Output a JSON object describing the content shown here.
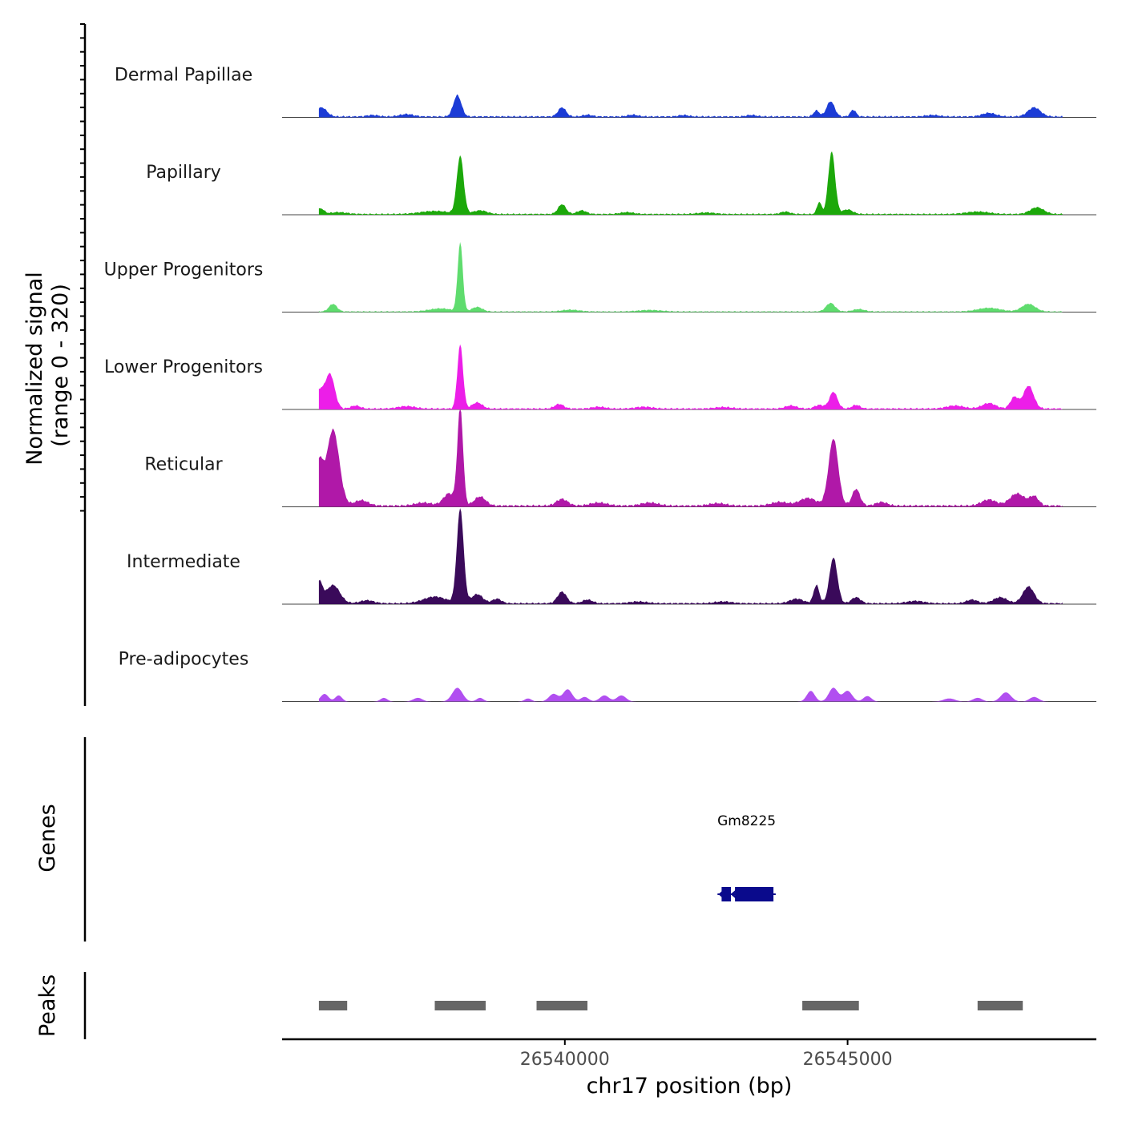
{
  "chart_data": {
    "type": "area",
    "title": "",
    "chromosome": "chr17",
    "xlabel": "chr17 position (bp)",
    "ylabel": "Normalized signal",
    "ylabel_range": "(range 0 - 320)",
    "xlim": [
      26535000,
      26549400
    ],
    "ylim": [
      0,
      320
    ],
    "region": [
      26535650,
      26548800
    ],
    "x_ticks": [
      {
        "value": 26540000,
        "label": "26540000"
      },
      {
        "value": 26545000,
        "label": "26545000"
      }
    ],
    "series": [
      {
        "name": "Dermal Papillae",
        "color": "#1c3cd6",
        "background": 6,
        "peaks": [
          [
            26535700,
            30,
            90
          ],
          [
            26536600,
            5,
            100
          ],
          [
            26537200,
            8,
            120
          ],
          [
            26538100,
            70,
            70
          ],
          [
            26539950,
            30,
            70
          ],
          [
            26540400,
            6,
            80
          ],
          [
            26541200,
            6,
            90
          ],
          [
            26542100,
            5,
            90
          ],
          [
            26543300,
            5,
            90
          ],
          [
            26544450,
            20,
            50
          ],
          [
            26544700,
            50,
            70
          ],
          [
            26545100,
            22,
            50
          ],
          [
            26546500,
            5,
            120
          ],
          [
            26547500,
            12,
            120
          ],
          [
            26548300,
            30,
            110
          ]
        ]
      },
      {
        "name": "Papillary",
        "color": "#1ca80a",
        "background": 5,
        "peaks": [
          [
            26535680,
            18,
            60
          ],
          [
            26536000,
            6,
            150
          ],
          [
            26537700,
            10,
            250
          ],
          [
            26538150,
            190,
            60
          ],
          [
            26538500,
            12,
            120
          ],
          [
            26539950,
            32,
            70
          ],
          [
            26540300,
            12,
            80
          ],
          [
            26541100,
            6,
            120
          ],
          [
            26542500,
            5,
            150
          ],
          [
            26543900,
            8,
            80
          ],
          [
            26544500,
            40,
            40
          ],
          [
            26544720,
            205,
            60
          ],
          [
            26545000,
            15,
            90
          ],
          [
            26547300,
            8,
            200
          ],
          [
            26548350,
            22,
            120
          ]
        ]
      },
      {
        "name": "Upper Progenitors",
        "color": "#5fdc6e",
        "background": 4,
        "peaks": [
          [
            26535900,
            25,
            70
          ],
          [
            26537800,
            10,
            200
          ],
          [
            26538150,
            225,
            45
          ],
          [
            26538450,
            15,
            90
          ],
          [
            26540100,
            6,
            150
          ],
          [
            26541500,
            5,
            200
          ],
          [
            26544700,
            28,
            80
          ],
          [
            26545200,
            8,
            100
          ],
          [
            26547500,
            12,
            200
          ],
          [
            26548200,
            25,
            120
          ]
        ]
      },
      {
        "name": "Lower Progenitors",
        "color": "#ec1ee8",
        "background": 6,
        "peaks": [
          [
            26535650,
            60,
            90
          ],
          [
            26535850,
            110,
            80
          ],
          [
            26536300,
            10,
            80
          ],
          [
            26537200,
            8,
            150
          ],
          [
            26538150,
            210,
            50
          ],
          [
            26538450,
            20,
            90
          ],
          [
            26539900,
            15,
            80
          ],
          [
            26540600,
            6,
            120
          ],
          [
            26541400,
            6,
            150
          ],
          [
            26542800,
            5,
            150
          ],
          [
            26544000,
            10,
            100
          ],
          [
            26544500,
            12,
            80
          ],
          [
            26544750,
            55,
            70
          ],
          [
            26545150,
            12,
            70
          ],
          [
            26546900,
            10,
            150
          ],
          [
            26547500,
            18,
            120
          ],
          [
            26547950,
            38,
            70
          ],
          [
            26548200,
            75,
            90
          ]
        ]
      },
      {
        "name": "Reticular",
        "color": "#b018a8",
        "background": 8,
        "peaks": [
          [
            26535650,
            140,
            70
          ],
          [
            26535900,
            250,
            110
          ],
          [
            26536400,
            18,
            120
          ],
          [
            26537500,
            10,
            150
          ],
          [
            26537950,
            40,
            100
          ],
          [
            26538150,
            320,
            50
          ],
          [
            26538500,
            30,
            100
          ],
          [
            26539950,
            22,
            100
          ],
          [
            26540600,
            10,
            150
          ],
          [
            26541500,
            10,
            150
          ],
          [
            26542700,
            8,
            150
          ],
          [
            26543800,
            12,
            150
          ],
          [
            26544300,
            25,
            150
          ],
          [
            26544750,
            220,
            85
          ],
          [
            26545150,
            55,
            70
          ],
          [
            26545600,
            12,
            100
          ],
          [
            26547500,
            20,
            130
          ],
          [
            26548000,
            40,
            130
          ],
          [
            26548300,
            30,
            80
          ]
        ]
      },
      {
        "name": "Intermediate",
        "color": "#3a0a5a",
        "background": 6,
        "peaks": [
          [
            26535650,
            70,
            60
          ],
          [
            26535900,
            60,
            120
          ],
          [
            26536500,
            10,
            120
          ],
          [
            26537700,
            22,
            200
          ],
          [
            26538150,
            310,
            60
          ],
          [
            26538450,
            30,
            100
          ],
          [
            26538800,
            15,
            80
          ],
          [
            26539950,
            38,
            80
          ],
          [
            26540400,
            12,
            90
          ],
          [
            26541300,
            6,
            150
          ],
          [
            26542800,
            6,
            150
          ],
          [
            26544100,
            15,
            120
          ],
          [
            26544450,
            60,
            50
          ],
          [
            26544750,
            150,
            70
          ],
          [
            26545150,
            20,
            80
          ],
          [
            26546200,
            8,
            150
          ],
          [
            26547200,
            12,
            100
          ],
          [
            26547700,
            20,
            120
          ],
          [
            26548200,
            55,
            100
          ]
        ]
      },
      {
        "name": "Pre-adipocytes",
        "color": "#b14ff0",
        "background": 0,
        "peaks": [
          [
            26535750,
            25,
            70
          ],
          [
            26536000,
            20,
            60
          ],
          [
            26536800,
            12,
            60
          ],
          [
            26537400,
            12,
            80
          ],
          [
            26538100,
            45,
            90
          ],
          [
            26538500,
            12,
            60
          ],
          [
            26539350,
            10,
            60
          ],
          [
            26539800,
            25,
            80
          ],
          [
            26540050,
            40,
            80
          ],
          [
            26540350,
            15,
            70
          ],
          [
            26540700,
            20,
            80
          ],
          [
            26541000,
            20,
            80
          ],
          [
            26544350,
            35,
            70
          ],
          [
            26544750,
            45,
            80
          ],
          [
            26545000,
            35,
            80
          ],
          [
            26545350,
            18,
            70
          ],
          [
            26546800,
            10,
            100
          ],
          [
            26547300,
            12,
            80
          ],
          [
            26547800,
            30,
            90
          ],
          [
            26548300,
            15,
            80
          ]
        ]
      }
    ],
    "genes": [
      {
        "name": "Gm8225",
        "start": 26542700,
        "end": 26543730,
        "strand": "-",
        "color": "#0a0a8c"
      }
    ],
    "peaks_track": [
      [
        26535650,
        26536150
      ],
      [
        26537700,
        26538600
      ],
      [
        26539500,
        26540400
      ],
      [
        26544200,
        26545200
      ],
      [
        26547300,
        26548100
      ]
    ],
    "track_labels": {
      "genes": "Genes",
      "peaks": "Peaks"
    }
  }
}
